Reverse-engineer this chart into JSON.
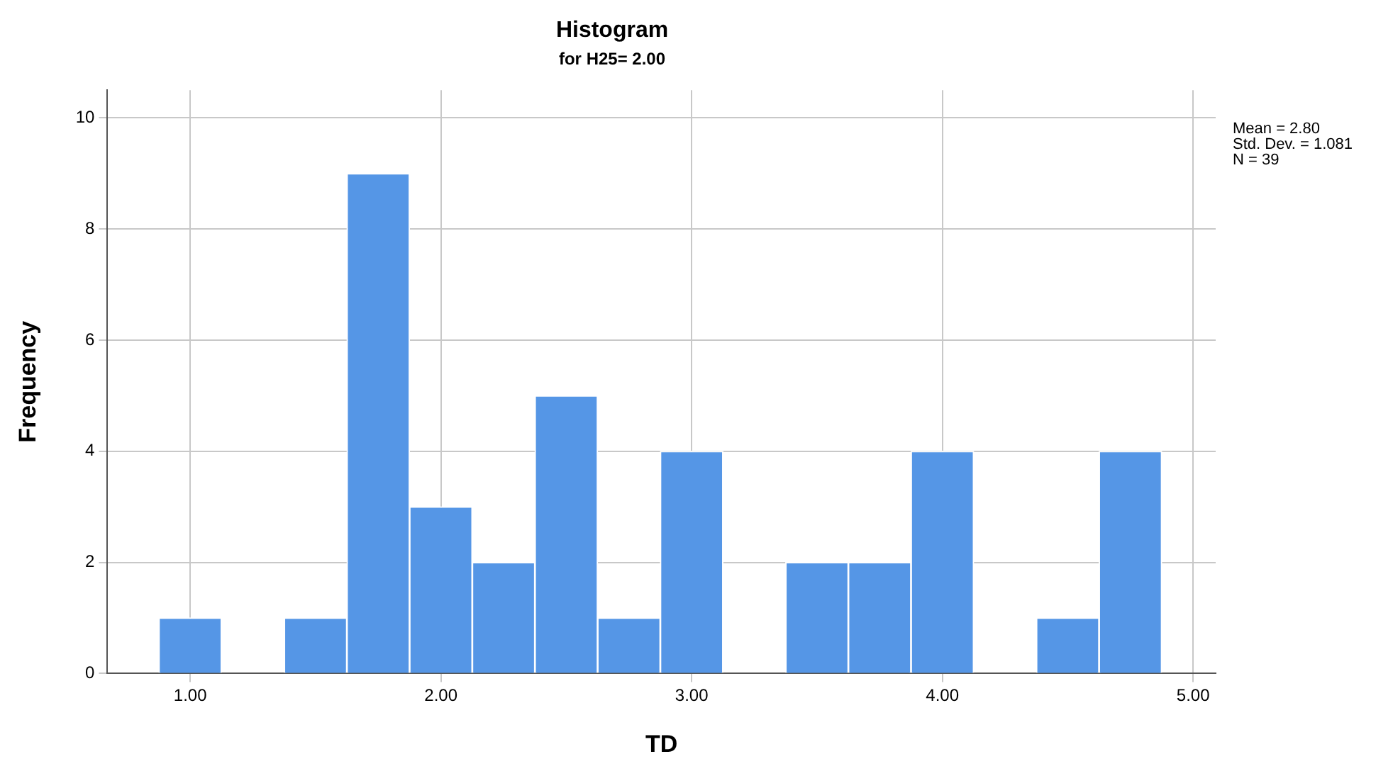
{
  "chart_data": {
    "type": "histogram",
    "title": "Histogram",
    "subtitle": "for H25= 2.00",
    "xlabel": "TD",
    "ylabel": "Frequency",
    "bins": [
      0.875,
      1.125,
      1.375,
      1.625,
      1.875,
      2.125,
      2.375,
      2.625,
      2.875,
      3.125,
      3.375,
      3.625,
      3.875,
      4.125,
      4.375,
      4.625,
      4.875
    ],
    "values": [
      1,
      0,
      1,
      9,
      3,
      2,
      5,
      1,
      4,
      0,
      2,
      2,
      4,
      0,
      1,
      4
    ],
    "color": "#5596e6",
    "xlim": [
      0.67,
      5.09
    ],
    "xticks": [
      {
        "value": 1,
        "label": "1.00"
      },
      {
        "value": 2,
        "label": "2.00"
      },
      {
        "value": 3,
        "label": "3.00"
      },
      {
        "value": 4,
        "label": "4.00"
      },
      {
        "value": 5,
        "label": "5.00"
      }
    ],
    "ylim": [
      0,
      10.5
    ],
    "yticks": [
      0,
      2,
      4,
      6,
      8,
      10
    ],
    "grid": true,
    "annotations": [
      "Mean = 2.80",
      "Std. Dev. = 1.081",
      "N = 39"
    ]
  }
}
